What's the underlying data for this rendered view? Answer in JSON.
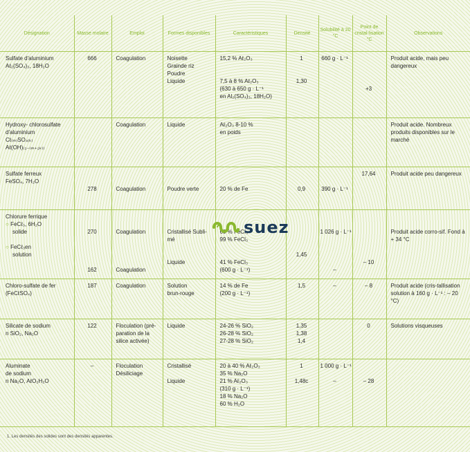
{
  "headers": [
    "Désignation",
    "Masse molaire",
    "Emploi",
    "Formes disponibles",
    "Caractéristiques",
    "Densité",
    "Solubilité à 20 °C",
    "Point de cristal-lisation °C",
    "Observations"
  ],
  "logo": {
    "text": "suez",
    "brand_color": "#1c3a58",
    "accent_color": "#8ab82e"
  },
  "rows": [
    {
      "designation": [
        "Sulfate d'aluminium",
        "Aℓ₂(SO₄)₃, 18H₂O"
      ],
      "masse": [
        "666"
      ],
      "emploi": [
        "Coagulation"
      ],
      "formes": [
        "Noisette",
        "Grainde riz",
        "Poudre",
        "Liquide"
      ],
      "caract": [
        "15,2 % Aℓ₂O₃",
        "",
        "",
        "7,5 à 8 % Aℓ₂O₃",
        "(630 à 650 g · L⁻¹",
        "en Al₂(SO₄)₃, 18H₂O)"
      ],
      "densite": [
        "1",
        "",
        "",
        "1,30"
      ],
      "solubilite": [
        "660 g · L⁻¹"
      ],
      "cristal": [
        "",
        "",
        "",
        "+3"
      ],
      "obs": "Produit acide, mais peu dangereux"
    },
    {
      "designation": [
        "Hydroxy- chlorosulfate",
        "d'aluminium",
        "Cℓ₍ₘ₎SO₄₍ₖ₎",
        "Aℓ(OH)₍₃₋₍ₘ₊₂ₖ₎₎"
      ],
      "masse": [
        ""
      ],
      "emploi": [
        "Coagulation"
      ],
      "formes": [
        "Liquide"
      ],
      "caract": [
        "Aℓ₂O₃ 8-10 %",
        "en poids"
      ],
      "densite": [
        ""
      ],
      "solubilite": [
        ""
      ],
      "cristal": [
        ""
      ],
      "obs": "Produit acide. Nombreux produits disponibles sur le marché"
    },
    {
      "designation": [
        "Sulfate ferreux",
        "FeSO₄, 7H₂O"
      ],
      "masse": [
        "278"
      ],
      "emploi": [
        "Coagulation"
      ],
      "formes": [
        "Poudre verte"
      ],
      "caract": [
        "20 % de Fe"
      ],
      "densite": [
        "0,9"
      ],
      "solubilite": [
        "390 g · L⁻¹"
      ],
      "cristal": [
        "17,64"
      ],
      "obs": "Produit acide peu dangereux"
    },
    {
      "designation": [
        "Chlorure ferrique",
        "FeCℓ₃, 6H₂O",
        "solide",
        "FeCℓ₃en",
        "solution"
      ],
      "masse": [
        "270",
        "162"
      ],
      "emploi": [
        "Coagulation",
        "Coagulation"
      ],
      "formes": [
        "Cristallisé Subli-",
        "mé",
        "Liquide"
      ],
      "caract": [
        "60 % FeCl₃",
        "99 % FeCl₃",
        "41 % FeCl₃",
        "(600 g · L⁻¹)"
      ],
      "densite": [
        "1,45"
      ],
      "solubilite": [
        "1 026 g · L⁻¹",
        "–"
      ],
      "cristal": [
        "– 10"
      ],
      "obs": "Produit acide corro-sif. Fond à + 34 °C"
    },
    {
      "designation": [
        "Chloro-sulfate de fer",
        "(FeCℓSO₄)"
      ],
      "masse": [
        "187"
      ],
      "emploi": [
        "Coagulation"
      ],
      "formes": [
        "Solution",
        "brun-rouge"
      ],
      "caract": [
        "14 % de Fe",
        "(200 g · L⁻¹)"
      ],
      "densite": [
        "1,5"
      ],
      "solubilite": [
        "–"
      ],
      "cristal": [
        "– 8"
      ],
      "obs": "Produit acide (cris-tallisation solution à 160 g · L⁻¹ : – 20 °C)"
    },
    {
      "designation": [
        "Silicate de sodium",
        "n SiO₂, Na₂O"
      ],
      "masse": [
        "122"
      ],
      "emploi": [
        "Floculation (pré-",
        "paration de la",
        "silice activée)"
      ],
      "formes": [
        "Liquide"
      ],
      "caract": [
        "24-26 % SiO₂",
        "26-28 % SiO₂",
        "27-28 % SiO₂"
      ],
      "densite": [
        "1,35",
        "1,38",
        "1,4"
      ],
      "solubilite": [
        ""
      ],
      "cristal": [
        "0"
      ],
      "obs": "Solutions visqueuses"
    },
    {
      "designation": [
        "Aluminate",
        "de sodium",
        "n Na₂O, AℓO₂H₂O"
      ],
      "masse": [
        "–"
      ],
      "emploi": [
        "Floculation",
        "Désiliciage"
      ],
      "formes": [
        "Cristallisé",
        "Liquide"
      ],
      "caract": [
        "20 à 40 % Aℓ₂O₃",
        "35 % Na₂O",
        "21 % Aℓ₂O₃",
        "(310 g · L⁻¹)",
        "18 % Na₂O",
        "60 % H₂O"
      ],
      "densite": [
        "1",
        "1,48c"
      ],
      "solubilite": [
        "1 000 g · L⁻¹",
        "–"
      ],
      "cristal": [
        "– 28"
      ],
      "obs": ""
    }
  ],
  "footnote": "1. Les densités des solides sont des densités apparentes."
}
